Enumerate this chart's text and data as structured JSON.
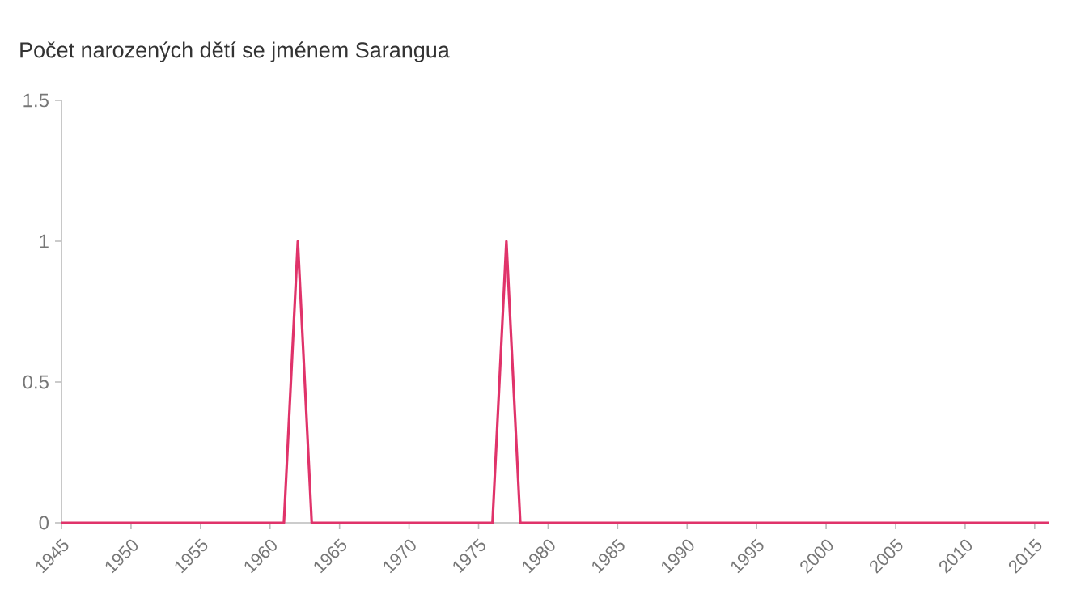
{
  "chart_data": {
    "type": "line",
    "title": "Počet narozených dětí se jménem Sarangua",
    "x": [
      1945,
      1946,
      1947,
      1948,
      1949,
      1950,
      1951,
      1952,
      1953,
      1954,
      1955,
      1956,
      1957,
      1958,
      1959,
      1960,
      1961,
      1962,
      1963,
      1964,
      1965,
      1966,
      1967,
      1968,
      1969,
      1970,
      1971,
      1972,
      1973,
      1974,
      1975,
      1976,
      1977,
      1978,
      1979,
      1980,
      1981,
      1982,
      1983,
      1984,
      1985,
      1986,
      1987,
      1988,
      1989,
      1990,
      1991,
      1992,
      1993,
      1994,
      1995,
      1996,
      1997,
      1998,
      1999,
      2000,
      2001,
      2002,
      2003,
      2004,
      2005,
      2006,
      2007,
      2008,
      2009,
      2010,
      2011,
      2012,
      2013,
      2014,
      2015,
      2016
    ],
    "series": [
      {
        "color": "#e0336a",
        "values": [
          0,
          0,
          0,
          0,
          0,
          0,
          0,
          0,
          0,
          0,
          0,
          0,
          0,
          0,
          0,
          0,
          0,
          1,
          0,
          0,
          0,
          0,
          0,
          0,
          0,
          0,
          0,
          0,
          0,
          0,
          0,
          0,
          1,
          0,
          0,
          0,
          0,
          0,
          0,
          0,
          0,
          0,
          0,
          0,
          0,
          0,
          0,
          0,
          0,
          0,
          0,
          0,
          0,
          0,
          0,
          0,
          0,
          0,
          0,
          0,
          0,
          0,
          0,
          0,
          0,
          0,
          0,
          0,
          0,
          0,
          0,
          0
        ]
      }
    ],
    "xlim": [
      1945,
      2016
    ],
    "xticks": [
      1945,
      1950,
      1955,
      1960,
      1965,
      1970,
      1975,
      1980,
      1985,
      1990,
      1995,
      2000,
      2005,
      2010,
      2015
    ],
    "ylim": [
      0,
      1.5
    ],
    "yticks": [
      0,
      0.5,
      1,
      1.5
    ],
    "grid": false,
    "marker": "none",
    "line_style": "solid"
  }
}
